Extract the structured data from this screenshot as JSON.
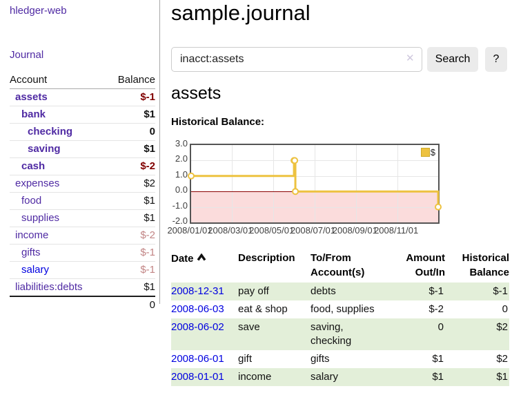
{
  "app": {
    "brand": "hledger-web",
    "nav_journal": "Journal"
  },
  "sidebar": {
    "headers": {
      "account": "Account",
      "balance": "Balance"
    },
    "rows": [
      {
        "name": "assets",
        "balance": "$-1"
      },
      {
        "name": "bank",
        "balance": "$1"
      },
      {
        "name": "checking",
        "balance": "0"
      },
      {
        "name": "saving",
        "balance": "$1"
      },
      {
        "name": "cash",
        "balance": "$-2"
      },
      {
        "name": "expenses",
        "balance": "$2"
      },
      {
        "name": "food",
        "balance": "$1"
      },
      {
        "name": "supplies",
        "balance": "$1"
      },
      {
        "name": "income",
        "balance": "$-2"
      },
      {
        "name": "gifts",
        "balance": "$-1"
      },
      {
        "name": "salary",
        "balance": "$-1"
      },
      {
        "name": "liabilities:debts",
        "balance": "$1"
      }
    ],
    "total": "0"
  },
  "header": {
    "title": "sample.journal"
  },
  "search": {
    "value": "inacct:assets",
    "clear_icon": "✕",
    "button_label": "Search",
    "help_label": "?"
  },
  "account_page": {
    "heading": "assets",
    "chart_title": "Historical Balance:"
  },
  "colors": {
    "link_purple": "#4f2aa3",
    "link_blue": "#0000e0",
    "negative": "#800000",
    "negative_dim": "#c28585",
    "row_green": "#e3efd9",
    "series_gold": "#edc240"
  },
  "chart_data": {
    "type": "line",
    "step": true,
    "title": "Historical Balance",
    "series": [
      {
        "name": "$",
        "color": "#edc240",
        "points": [
          [
            "2008-01-01",
            1
          ],
          [
            "2008-06-01",
            2
          ],
          [
            "2008-06-02",
            2
          ],
          [
            "2008-06-03",
            0
          ],
          [
            "2008-12-31",
            -1
          ]
        ]
      }
    ],
    "xlim": [
      "2008-01-01",
      "2008-12-31"
    ],
    "ylim": [
      -2,
      3
    ],
    "y_ticks": [
      3,
      2,
      1,
      0,
      -1,
      -2
    ],
    "y_tick_labels": [
      "3.0",
      "2.0",
      "1.0",
      "0.0",
      "-1.0",
      "-2.0"
    ],
    "x_ticks": [
      "2008-01-01",
      "2008-03-01",
      "2008-05-01",
      "2008-07-01",
      "2008-09-01",
      "2008-11-01"
    ],
    "x_tick_labels": [
      "2008/01/01",
      "2008/03/01",
      "2008/05/01",
      "2008/07/01",
      "2008/09/01",
      "2008/11/01"
    ],
    "grid": true,
    "zero_line_color": "#8b0000",
    "negative_region_color": "#fbdcdc",
    "legend": {
      "label": "$",
      "position": "top-right"
    }
  },
  "register": {
    "headers": [
      "Date",
      "Description",
      "To/From Account(s)",
      "Amount Out/In",
      "Historical Balance"
    ],
    "rows": [
      {
        "date": "2008-12-31",
        "description": "pay off",
        "accounts": "debts",
        "amount": "$-1",
        "balance": "$-1"
      },
      {
        "date": "2008-06-03",
        "description": "eat & shop",
        "accounts": "food, supplies",
        "amount": "$-2",
        "balance": "0"
      },
      {
        "date": "2008-06-02",
        "description": "save",
        "accounts": "saving, checking",
        "amount": "0",
        "balance": "$2"
      },
      {
        "date": "2008-06-01",
        "description": "gift",
        "accounts": "gifts",
        "amount": "$1",
        "balance": "$2"
      },
      {
        "date": "2008-01-01",
        "description": "income",
        "accounts": "salary",
        "amount": "$1",
        "balance": "$1"
      }
    ]
  }
}
